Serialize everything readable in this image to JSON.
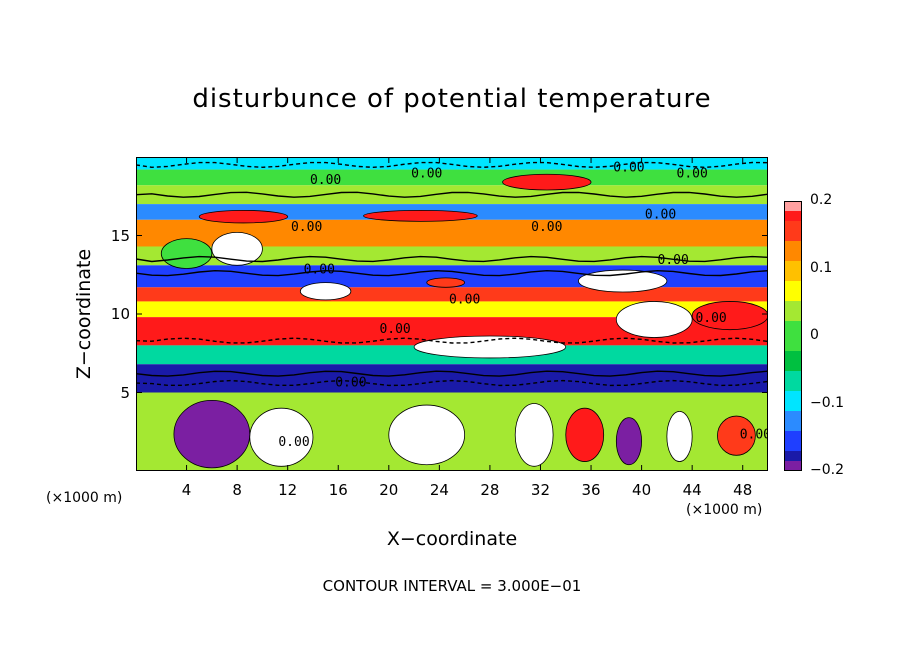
{
  "chart_data": {
    "type": "heatmap",
    "title": "disturbunce of potential temperature",
    "xlabel": "X−coordinate",
    "ylabel": "Z−coordinate",
    "x_unit": "(×1000 m)",
    "xlim": [
      0,
      50
    ],
    "ylim": [
      0,
      20
    ],
    "x_ticks": [
      "4",
      "8",
      "12",
      "16",
      "20",
      "24",
      "28",
      "32",
      "36",
      "40",
      "44",
      "48"
    ],
    "y_ticks": [
      "5",
      "10",
      "15"
    ],
    "colorbar": {
      "range": [
        -0.2,
        0.2
      ],
      "ticks": [
        "0.2",
        "0.1",
        "0",
        "−0.1",
        "−0.2"
      ]
    },
    "contour_interval": "CONTOUR INTERVAL = 3.000E−01",
    "contour_labels": [
      {
        "text": "0.00",
        "x": 15,
        "z": 18.6
      },
      {
        "text": "0.00",
        "x": 23,
        "z": 19.0
      },
      {
        "text": "0.00",
        "x": 39,
        "z": 19.4
      },
      {
        "text": "0.00",
        "x": 44,
        "z": 19.0
      },
      {
        "text": "0.00",
        "x": 13.5,
        "z": 15.6
      },
      {
        "text": "0.00",
        "x": 32.5,
        "z": 15.6
      },
      {
        "text": "0.00",
        "x": 41.5,
        "z": 16.4
      },
      {
        "text": "0.00",
        "x": 42.5,
        "z": 13.5
      },
      {
        "text": "0.00",
        "x": 14.5,
        "z": 12.9
      },
      {
        "text": "0.00",
        "x": 26,
        "z": 11.0
      },
      {
        "text": "0.00",
        "x": 20.5,
        "z": 9.1
      },
      {
        "text": "0.00",
        "x": 45.5,
        "z": 9.8
      },
      {
        "text": "0.00",
        "x": 17,
        "z": 5.7
      },
      {
        "text": "0.00",
        "x": 12.5,
        "z": 1.9
      },
      {
        "text": "0.00",
        "x": 49,
        "z": 2.4
      }
    ],
    "bands": [
      {
        "z": [
          19.2,
          20.0
        ],
        "theta": -0.08
      },
      {
        "z": [
          18.2,
          19.2
        ],
        "theta": 0.0
      },
      {
        "z": [
          17.0,
          18.2
        ],
        "theta": 0.02
      },
      {
        "z": [
          16.0,
          17.0
        ],
        "theta": -0.12
      },
      {
        "z": [
          14.3,
          16.0
        ],
        "theta": 0.12
      },
      {
        "z": [
          13.1,
          14.3
        ],
        "theta": 0.02
      },
      {
        "z": [
          11.7,
          13.1
        ],
        "theta": -0.15
      },
      {
        "z": [
          10.8,
          11.7
        ],
        "theta": 0.15
      },
      {
        "z": [
          9.8,
          10.8
        ],
        "theta": 0.05
      },
      {
        "z": [
          8.0,
          9.8
        ],
        "theta": 0.17
      },
      {
        "z": [
          6.8,
          8.0
        ],
        "theta": -0.05
      },
      {
        "z": [
          5.0,
          6.8
        ],
        "theta": -0.17
      },
      {
        "z": [
          0.0,
          5.0
        ],
        "theta": 0.03
      }
    ],
    "cells": [
      {
        "x": [
          29,
          36
        ],
        "z": [
          17.9,
          18.9
        ],
        "theta": 0.18
      },
      {
        "x": [
          5,
          12
        ],
        "z": [
          15.8,
          16.6
        ],
        "theta": 0.18
      },
      {
        "x": [
          18,
          27
        ],
        "z": [
          15.9,
          16.6
        ],
        "theta": 0.18
      },
      {
        "x": [
          2,
          6
        ],
        "z": [
          12.9,
          14.8
        ],
        "theta": 0.0
      },
      {
        "x": [
          6,
          10
        ],
        "z": [
          13.1,
          15.2
        ],
        "theta": -0.2
      },
      {
        "x": [
          13,
          17
        ],
        "z": [
          10.9,
          12.0
        ],
        "theta": -0.2
      },
      {
        "x": [
          23,
          26
        ],
        "z": [
          11.7,
          12.3
        ],
        "theta": 0.14
      },
      {
        "x": [
          35,
          42
        ],
        "z": [
          11.4,
          12.8
        ],
        "theta": -0.2
      },
      {
        "x": [
          38,
          44
        ],
        "z": [
          8.5,
          10.8
        ],
        "theta": -0.2
      },
      {
        "x": [
          44,
          50
        ],
        "z": [
          9.0,
          10.8
        ],
        "theta": 0.18
      },
      {
        "x": [
          22,
          34
        ],
        "z": [
          7.2,
          8.6
        ],
        "theta": -0.2
      },
      {
        "x": [
          3,
          9
        ],
        "z": [
          0.2,
          4.5
        ],
        "theta": -0.19
      },
      {
        "x": [
          9,
          14
        ],
        "z": [
          0.3,
          4.0
        ],
        "theta": -0.2
      },
      {
        "x": [
          20,
          26
        ],
        "z": [
          0.4,
          4.2
        ],
        "theta": -0.2
      },
      {
        "x": [
          30,
          33
        ],
        "z": [
          0.3,
          4.3
        ],
        "theta": -0.2
      },
      {
        "x": [
          34,
          37
        ],
        "z": [
          0.6,
          4.0
        ],
        "theta": 0.19
      },
      {
        "x": [
          38,
          40
        ],
        "z": [
          0.4,
          3.4
        ],
        "theta": -0.19
      },
      {
        "x": [
          42,
          44
        ],
        "z": [
          0.6,
          3.8
        ],
        "theta": -0.2
      },
      {
        "x": [
          46,
          49
        ],
        "z": [
          1.0,
          3.5
        ],
        "theta": 0.16
      }
    ],
    "contour_lines": [
      {
        "z": 5.6,
        "style": "dashed"
      },
      {
        "z": 6.2,
        "style": "solid"
      },
      {
        "z": 8.3,
        "style": "dashed"
      },
      {
        "z": 12.6,
        "style": "solid"
      },
      {
        "z": 13.5,
        "style": "solid"
      },
      {
        "z": 17.6,
        "style": "solid"
      },
      {
        "z": 19.5,
        "style": "dashed"
      }
    ]
  }
}
